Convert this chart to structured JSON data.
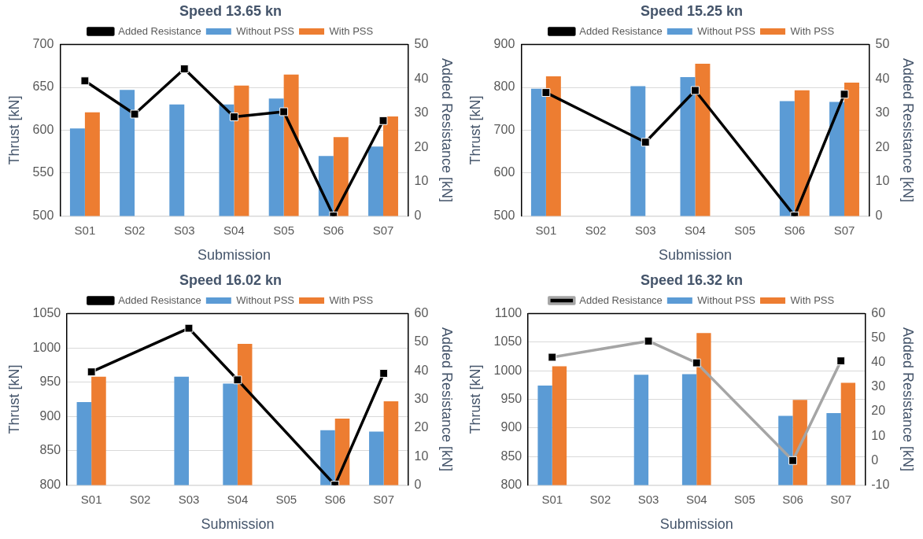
{
  "chart_data": [
    {
      "type": "bar",
      "title": "Speed 13.65 kn",
      "xlabel": "Submission",
      "ylabel": "Thrust [kN]",
      "y2label": "Added Resistance [kN]",
      "categories": [
        "S01",
        "S02",
        "S03",
        "S04",
        "S05",
        "S06",
        "S07"
      ],
      "ylim": [
        500,
        700
      ],
      "yticks": [
        500,
        550,
        600,
        650,
        700
      ],
      "y2lim": [
        0,
        50
      ],
      "y2ticks": [
        0,
        10,
        20,
        30,
        40,
        50
      ],
      "grid": "y",
      "legend": "top",
      "marker": "square",
      "series": [
        {
          "name": "Without PSS",
          "color": "#5b9bd5",
          "values": [
            602,
            647,
            630,
            630,
            637,
            570,
            581
          ]
        },
        {
          "name": "With PSS",
          "color": "#ed7d31",
          "values": [
            621,
            null,
            null,
            652,
            665,
            592,
            616
          ]
        },
        {
          "name": "Added Resistance",
          "type": "line",
          "axis": "y2",
          "color": "#000000",
          "values": [
            39.4,
            29.7,
            42.9,
            28.9,
            30.4,
            0,
            27.8
          ]
        }
      ]
    },
    {
      "type": "bar",
      "title": "Speed 15.25 kn",
      "xlabel": "Submission",
      "ylabel": "Thrust [kN]",
      "y2label": "Added Resistance [kN]",
      "categories": [
        "S01",
        "S02",
        "S03",
        "S04",
        "S05",
        "S06",
        "S07"
      ],
      "ylim": [
        500,
        900
      ],
      "yticks": [
        500,
        600,
        700,
        800,
        900
      ],
      "y2lim": [
        0,
        50
      ],
      "y2ticks": [
        0,
        10,
        20,
        30,
        40,
        50
      ],
      "grid": "y",
      "legend": "top",
      "marker": "square",
      "series": [
        {
          "name": "Without PSS",
          "color": "#5b9bd5",
          "values": [
            797,
            null,
            803,
            824,
            null,
            768,
            766
          ]
        },
        {
          "name": "With PSS",
          "color": "#ed7d31",
          "values": [
            826,
            null,
            null,
            855,
            null,
            793,
            811
          ]
        },
        {
          "name": "Added Resistance",
          "type": "line",
          "axis": "y2",
          "color": "#000000",
          "values": [
            36.0,
            null,
            21.5,
            36.6,
            null,
            0,
            35.5
          ]
        }
      ]
    },
    {
      "type": "bar",
      "title": "Speed 16.02 kn",
      "xlabel": "Submission",
      "ylabel": "Thrust [kN]",
      "y2label": "Added Resistance [kN]",
      "categories": [
        "S01",
        "S02",
        "S03",
        "S04",
        "S05",
        "S06",
        "S07"
      ],
      "ylim": [
        800,
        1050
      ],
      "yticks": [
        800,
        850,
        900,
        950,
        1000,
        1050
      ],
      "y2lim": [
        0,
        60
      ],
      "y2ticks": [
        0,
        10,
        20,
        30,
        40,
        50,
        60
      ],
      "grid": "y",
      "legend": "top",
      "marker": "square",
      "series": [
        {
          "name": "Without PSS",
          "color": "#5b9bd5",
          "values": [
            921,
            null,
            958,
            948,
            null,
            880,
            878
          ]
        },
        {
          "name": "With PSS",
          "color": "#ed7d31",
          "values": [
            958,
            null,
            null,
            1006,
            null,
            897,
            922
          ]
        },
        {
          "name": "Added Resistance",
          "type": "line",
          "axis": "y2",
          "color": "#000000",
          "values": [
            39.6,
            null,
            54.9,
            36.8,
            null,
            0,
            39.1
          ]
        }
      ]
    },
    {
      "type": "bar",
      "title": "Speed 16.32 kn",
      "xlabel": "Submission",
      "ylabel": "Thrust [kN]",
      "y2label": "Added Resistance [kN]",
      "categories": [
        "S01",
        "S02",
        "S03",
        "S04",
        "S05",
        "S06",
        "S07"
      ],
      "ylim": [
        800,
        1100
      ],
      "yticks": [
        800,
        850,
        900,
        950,
        1000,
        1050,
        1100
      ],
      "y2lim": [
        -10,
        60
      ],
      "y2ticks": [
        -10,
        0,
        10,
        20,
        30,
        40,
        50,
        60
      ],
      "grid": "y",
      "legend": "top",
      "marker": "square",
      "series": [
        {
          "name": "Without PSS",
          "color": "#5b9bd5",
          "values": [
            974,
            null,
            993,
            994,
            null,
            921,
            926
          ]
        },
        {
          "name": "With PSS",
          "color": "#ed7d31",
          "values": [
            1008,
            null,
            null,
            1066,
            null,
            949,
            979
          ]
        },
        {
          "name": "Added Resistance",
          "type": "line",
          "axis": "y2",
          "color": "#a5a5a5",
          "values": [
            42.2,
            null,
            48.8,
            39.9,
            null,
            0,
            40.7
          ]
        }
      ]
    }
  ]
}
